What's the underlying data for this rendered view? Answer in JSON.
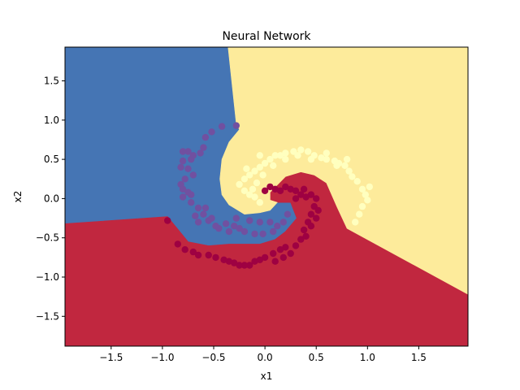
{
  "chart_data": {
    "type": "scatter",
    "title": "Neural Network",
    "xlabel": "x1",
    "ylabel": "x2",
    "xlim": [
      -1.95,
      1.98
    ],
    "ylim": [
      -1.88,
      1.93
    ],
    "grid": false,
    "legend": "none",
    "x_ticks": [
      -1.5,
      -1.0,
      -0.5,
      0.0,
      0.5,
      1.0,
      1.5
    ],
    "y_ticks": [
      -1.5,
      -1.0,
      -0.5,
      0.0,
      0.5,
      1.0,
      1.5
    ],
    "x_tick_labels": [
      "−1.5",
      "−1.0",
      "−0.5",
      "0.0",
      "0.5",
      "1.0",
      "1.5"
    ],
    "y_tick_labels": [
      "−1.5",
      "−1.0",
      "−0.5",
      "0.0",
      "0.5",
      "1.0",
      "1.5"
    ],
    "decision_regions": [
      {
        "class": 0,
        "color": "#4575b4",
        "polygon": [
          [
            -1.95,
            1.93
          ],
          [
            -0.36,
            1.93
          ],
          [
            -0.28,
            0.95
          ],
          [
            -0.25,
            0.88
          ],
          [
            -0.35,
            0.72
          ],
          [
            -0.42,
            0.5
          ],
          [
            -0.44,
            0.25
          ],
          [
            -0.42,
            0.05
          ],
          [
            -0.35,
            -0.08
          ],
          [
            -0.2,
            -0.2
          ],
          [
            -0.05,
            -0.18
          ],
          [
            0.05,
            -0.15
          ],
          [
            0.12,
            -0.05
          ],
          [
            0.25,
            -0.05
          ],
          [
            0.31,
            -0.25
          ],
          [
            0.2,
            -0.42
          ],
          [
            0.1,
            -0.52
          ],
          [
            -0.05,
            -0.58
          ],
          [
            -0.2,
            -0.58
          ],
          [
            -0.35,
            -0.58
          ],
          [
            -0.55,
            -0.6
          ],
          [
            -0.75,
            -0.55
          ],
          [
            -0.95,
            -0.23
          ],
          [
            -1.95,
            -0.32
          ]
        ]
      },
      {
        "class": 1,
        "color": "#c1273f",
        "polygon": [
          [
            -1.95,
            -0.32
          ],
          [
            -0.95,
            -0.23
          ],
          [
            -0.75,
            -0.55
          ],
          [
            -0.55,
            -0.6
          ],
          [
            -0.35,
            -0.58
          ],
          [
            -0.2,
            -0.58
          ],
          [
            -0.05,
            -0.58
          ],
          [
            0.1,
            -0.52
          ],
          [
            0.2,
            -0.42
          ],
          [
            0.31,
            -0.25
          ],
          [
            0.25,
            -0.05
          ],
          [
            0.12,
            -0.05
          ],
          [
            0.05,
            -0.02
          ],
          [
            0.05,
            0.08
          ],
          [
            0.2,
            0.28
          ],
          [
            0.35,
            0.34
          ],
          [
            0.48,
            0.3
          ],
          [
            0.6,
            0.2
          ],
          [
            0.7,
            -0.1
          ],
          [
            0.8,
            -0.38
          ],
          [
            1.98,
            -1.22
          ],
          [
            1.98,
            -1.88
          ],
          [
            -1.95,
            -1.88
          ]
        ]
      },
      {
        "class": 2,
        "color": "#fdeb9b",
        "polygon": [
          [
            -0.36,
            1.93
          ],
          [
            1.98,
            1.93
          ],
          [
            1.98,
            -1.22
          ],
          [
            0.8,
            -0.38
          ],
          [
            0.7,
            -0.1
          ],
          [
            0.6,
            0.2
          ],
          [
            0.48,
            0.3
          ],
          [
            0.35,
            0.34
          ],
          [
            0.2,
            0.28
          ],
          [
            0.05,
            0.08
          ],
          [
            0.05,
            -0.02
          ],
          [
            0.12,
            -0.05
          ],
          [
            0.05,
            -0.15
          ],
          [
            -0.05,
            -0.18
          ],
          [
            -0.2,
            -0.2
          ],
          [
            -0.35,
            -0.08
          ],
          [
            -0.42,
            0.05
          ],
          [
            -0.44,
            0.25
          ],
          [
            -0.42,
            0.5
          ],
          [
            -0.35,
            0.72
          ],
          [
            -0.25,
            0.88
          ],
          [
            -0.28,
            0.95
          ]
        ]
      }
    ],
    "series": [
      {
        "class": 0,
        "color": "#7150a0",
        "points": [
          [
            -0.28,
            0.93
          ],
          [
            -0.42,
            0.92
          ],
          [
            -0.52,
            0.85
          ],
          [
            -0.58,
            0.78
          ],
          [
            -0.6,
            0.65
          ],
          [
            -0.63,
            0.58
          ],
          [
            -0.75,
            0.6
          ],
          [
            -0.8,
            0.6
          ],
          [
            -0.7,
            0.55
          ],
          [
            -0.72,
            0.5
          ],
          [
            -0.8,
            0.48
          ],
          [
            -0.82,
            0.4
          ],
          [
            -0.75,
            0.38
          ],
          [
            -0.7,
            0.3
          ],
          [
            -0.78,
            0.25
          ],
          [
            -0.82,
            0.18
          ],
          [
            -0.8,
            0.12
          ],
          [
            -0.75,
            0.08
          ],
          [
            -0.72,
            0.05
          ],
          [
            -0.8,
            0.02
          ],
          [
            -0.72,
            -0.05
          ],
          [
            -0.65,
            -0.12
          ],
          [
            -0.6,
            -0.2
          ],
          [
            -0.68,
            -0.22
          ],
          [
            -0.65,
            -0.3
          ],
          [
            -0.55,
            -0.28
          ],
          [
            -0.48,
            -0.35
          ],
          [
            -0.38,
            -0.32
          ],
          [
            -0.3,
            -0.35
          ],
          [
            -0.25,
            -0.38
          ],
          [
            -0.2,
            -0.42
          ],
          [
            -0.1,
            -0.45
          ],
          [
            -0.02,
            -0.45
          ],
          [
            0.08,
            -0.42
          ],
          [
            0.12,
            -0.35
          ],
          [
            0.18,
            -0.3
          ],
          [
            0.22,
            -0.2
          ],
          [
            -0.35,
            -0.42
          ],
          [
            -0.45,
            -0.38
          ],
          [
            -0.28,
            -0.25
          ],
          [
            -0.15,
            -0.28
          ],
          [
            -0.05,
            -0.3
          ],
          [
            0.05,
            -0.3
          ],
          [
            -0.58,
            -0.12
          ],
          [
            -0.52,
            -0.25
          ]
        ]
      },
      {
        "class": 1,
        "color": "#9e0142",
        "points": [
          [
            0.0,
            0.1
          ],
          [
            0.05,
            0.15
          ],
          [
            0.1,
            0.12
          ],
          [
            0.15,
            0.1
          ],
          [
            0.2,
            0.15
          ],
          [
            0.25,
            0.12
          ],
          [
            0.3,
            0.1
          ],
          [
            0.35,
            0.05
          ],
          [
            0.4,
            0.02
          ],
          [
            0.45,
            0.05
          ],
          [
            0.5,
            0.0
          ],
          [
            0.48,
            -0.1
          ],
          [
            0.52,
            -0.15
          ],
          [
            0.45,
            -0.2
          ],
          [
            0.5,
            -0.25
          ],
          [
            0.42,
            -0.3
          ],
          [
            0.45,
            -0.35
          ],
          [
            0.38,
            -0.4
          ],
          [
            0.4,
            -0.48
          ],
          [
            0.35,
            -0.52
          ],
          [
            0.3,
            -0.6
          ],
          [
            0.2,
            -0.62
          ],
          [
            0.15,
            -0.65
          ],
          [
            0.08,
            -0.7
          ],
          [
            0.0,
            -0.75
          ],
          [
            -0.05,
            -0.78
          ],
          [
            -0.1,
            -0.8
          ],
          [
            -0.15,
            -0.85
          ],
          [
            -0.2,
            -0.85
          ],
          [
            -0.25,
            -0.85
          ],
          [
            -0.3,
            -0.82
          ],
          [
            -0.35,
            -0.8
          ],
          [
            -0.4,
            -0.78
          ],
          [
            -0.48,
            -0.75
          ],
          [
            -0.55,
            -0.72
          ],
          [
            -0.65,
            -0.72
          ],
          [
            -0.7,
            -0.68
          ],
          [
            -0.78,
            -0.65
          ],
          [
            -0.85,
            -0.58
          ],
          [
            -0.95,
            -0.28
          ],
          [
            0.25,
            -0.7
          ],
          [
            0.18,
            -0.75
          ],
          [
            0.1,
            -0.8
          ],
          [
            0.3,
            0.0
          ],
          [
            0.38,
            0.12
          ]
        ]
      },
      {
        "class": 2,
        "color": "#ffffbf",
        "points": [
          [
            -0.05,
            -0.05
          ],
          [
            -0.1,
            0.02
          ],
          [
            -0.15,
            0.05
          ],
          [
            -0.2,
            0.1
          ],
          [
            -0.25,
            0.18
          ],
          [
            -0.2,
            0.25
          ],
          [
            -0.15,
            0.3
          ],
          [
            -0.1,
            0.35
          ],
          [
            -0.05,
            0.4
          ],
          [
            0.0,
            0.45
          ],
          [
            0.05,
            0.5
          ],
          [
            0.1,
            0.55
          ],
          [
            0.15,
            0.55
          ],
          [
            0.2,
            0.58
          ],
          [
            0.28,
            0.6
          ],
          [
            0.35,
            0.62
          ],
          [
            0.42,
            0.6
          ],
          [
            0.48,
            0.55
          ],
          [
            0.55,
            0.52
          ],
          [
            0.6,
            0.5
          ],
          [
            0.68,
            0.48
          ],
          [
            0.72,
            0.45
          ],
          [
            0.78,
            0.42
          ],
          [
            0.82,
            0.35
          ],
          [
            0.85,
            0.28
          ],
          [
            0.9,
            0.22
          ],
          [
            0.95,
            0.12
          ],
          [
            0.98,
            0.05
          ],
          [
            1.0,
            -0.02
          ],
          [
            0.95,
            -0.1
          ],
          [
            0.92,
            -0.2
          ],
          [
            0.88,
            -0.3
          ],
          [
            0.2,
            0.5
          ],
          [
            0.08,
            0.42
          ],
          [
            -0.02,
            0.3
          ],
          [
            -0.08,
            0.2
          ],
          [
            -0.12,
            0.12
          ],
          [
            0.6,
            0.58
          ],
          [
            0.7,
            0.42
          ],
          [
            0.32,
            0.55
          ],
          [
            -0.18,
            0.38
          ],
          [
            -0.05,
            0.55
          ],
          [
            0.45,
            0.5
          ],
          [
            0.8,
            0.5
          ],
          [
            1.02,
            0.15
          ]
        ]
      }
    ]
  }
}
